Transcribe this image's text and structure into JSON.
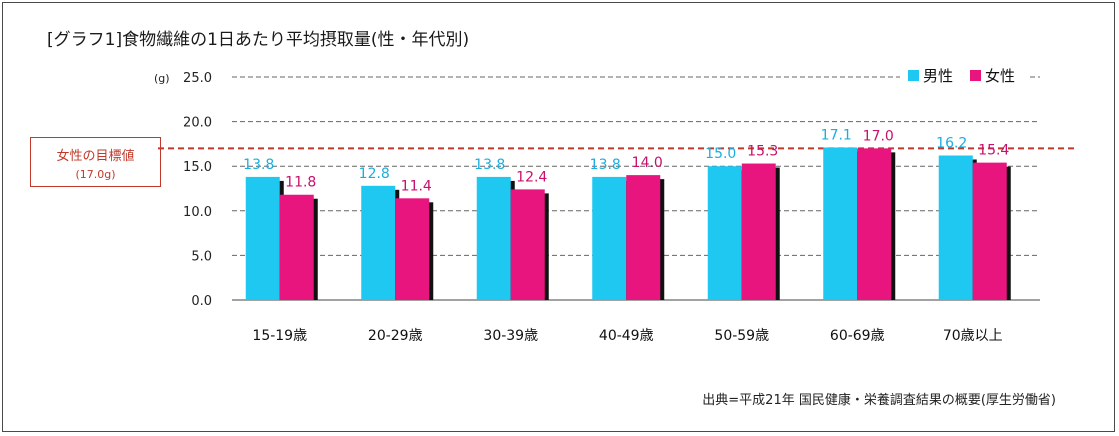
{
  "title": "[グラフ1]食物繊維の1日あたり平均摂取量(性・年代別)",
  "source": "出典=平成21年 国民健康・栄養調査結果の概要(厚生労働省)",
  "target": {
    "label": "女性の目標値",
    "value_text": "(17.0g)",
    "value": 17.0,
    "color": "#c0392b"
  },
  "chart_data": {
    "type": "bar",
    "title": "[グラフ1]食物繊維の1日あたり平均摂取量(性・年代別)",
    "unit": "(g)",
    "categories": [
      "15-19歳",
      "20-29歳",
      "30-39歳",
      "40-49歳",
      "50-59歳",
      "60-69歳",
      "70歳以上"
    ],
    "series": [
      {
        "name": "男性",
        "color": "#1ec8f0",
        "label_color": "#1aaee0",
        "values": [
          13.8,
          12.8,
          13.8,
          13.8,
          15.0,
          17.1,
          16.2
        ]
      },
      {
        "name": "女性",
        "color": "#e8157f",
        "label_color": "#c8106c",
        "values": [
          11.8,
          11.4,
          12.4,
          14.0,
          15.3,
          17.0,
          15.4
        ]
      }
    ],
    "ylim": [
      0,
      25
    ],
    "yticks": [
      "0.0",
      "5.0",
      "10.0",
      "15.0",
      "20.0",
      "25.0"
    ],
    "ytick_values": [
      0,
      5,
      10,
      15,
      20,
      25
    ],
    "grid": true,
    "legend_position": "top-right"
  }
}
